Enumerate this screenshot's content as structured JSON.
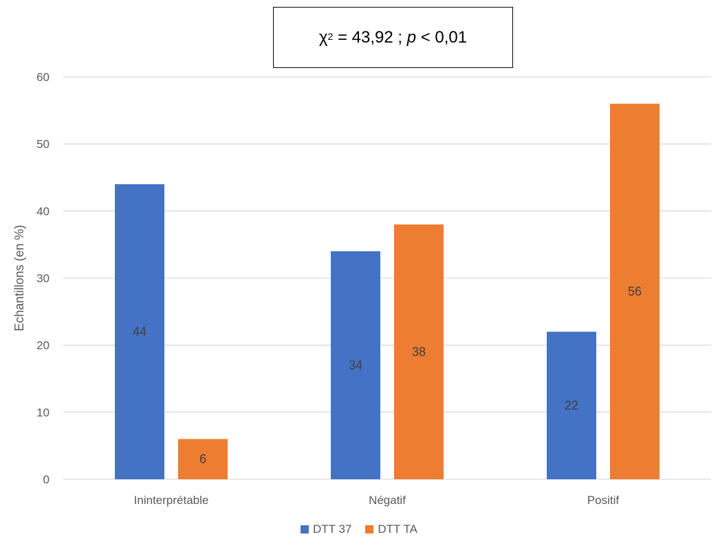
{
  "chart_data": {
    "type": "bar",
    "categories": [
      "Ininterprétable",
      "Négatif",
      "Positif"
    ],
    "series": [
      {
        "name": "DTT 37",
        "values": [
          44,
          34,
          22
        ],
        "color": "#4472C4"
      },
      {
        "name": "DTT TA",
        "values": [
          6,
          38,
          56
        ],
        "color": "#ED7D31"
      }
    ],
    "xlabel": "",
    "ylabel": "Echantillons  (en %)",
    "ylim": [
      0,
      60
    ],
    "yticks": [
      0,
      10,
      20,
      30,
      40,
      50,
      60
    ],
    "grid": true,
    "legend_position": "bottom",
    "annotation": {
      "symbol": "χ",
      "exponent": "2",
      "equals_text": " = 43,92 ; ",
      "p_symbol": "p",
      "p_text": " < 0,01"
    }
  },
  "colors": {
    "gridline": "#D9D9D9",
    "axis_text": "#595959",
    "data_label": "#404040"
  }
}
